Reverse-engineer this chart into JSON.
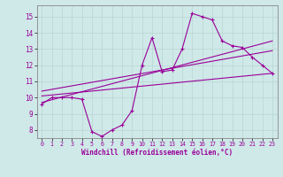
{
  "xlabel": "Windchill (Refroidissement éolien,°C)",
  "background_color": "#cfe8e8",
  "grid_color": "#b8d8d0",
  "line_color": "#990099",
  "xlim": [
    -0.5,
    23.5
  ],
  "ylim": [
    7.5,
    15.7
  ],
  "yticks": [
    8,
    9,
    10,
    11,
    12,
    13,
    14,
    15
  ],
  "xticks": [
    0,
    1,
    2,
    3,
    4,
    5,
    6,
    7,
    8,
    9,
    10,
    11,
    12,
    13,
    14,
    15,
    16,
    17,
    18,
    19,
    20,
    21,
    22,
    23
  ],
  "hours": [
    0,
    1,
    2,
    3,
    4,
    5,
    6,
    7,
    8,
    9,
    10,
    11,
    12,
    13,
    14,
    15,
    16,
    17,
    18,
    19,
    20,
    21,
    22,
    23
  ],
  "temp": [
    9.6,
    10.0,
    10.0,
    10.0,
    9.9,
    7.9,
    7.6,
    8.0,
    8.3,
    9.2,
    12.0,
    13.7,
    11.6,
    11.7,
    13.0,
    15.2,
    15.0,
    14.8,
    13.5,
    13.2,
    13.1,
    12.5,
    12.0,
    11.5
  ],
  "trend1_x": [
    0,
    23
  ],
  "trend1_y": [
    9.7,
    13.5
  ],
  "trend2_x": [
    0,
    23
  ],
  "trend2_y": [
    10.1,
    11.5
  ],
  "trend3_x": [
    0,
    23
  ],
  "trend3_y": [
    10.4,
    12.9
  ]
}
